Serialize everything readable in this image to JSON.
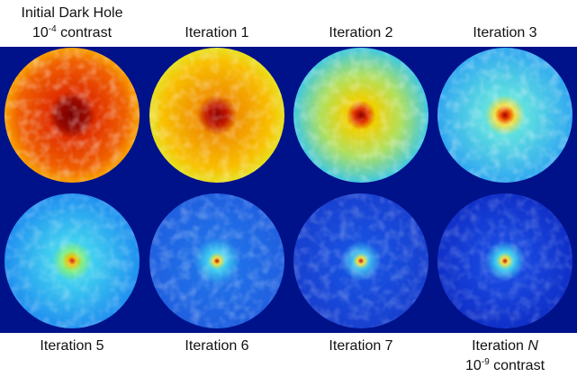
{
  "panels": [
    {
      "title": "Initial Dark Hole",
      "contrast": {
        "base": "10",
        "exponent": "-4",
        "text": "contrast"
      }
    },
    {
      "title": "Iteration 1"
    },
    {
      "title": "Iteration 2"
    },
    {
      "title": "Iteration 3"
    },
    {
      "title": "Iteration 5"
    },
    {
      "title": "Iteration 6"
    },
    {
      "title": "Iteration 7"
    },
    {
      "title": "Iteration",
      "italic": "N",
      "contrast": {
        "base": "10",
        "exponent": "-9",
        "text": "contrast"
      }
    }
  ]
}
